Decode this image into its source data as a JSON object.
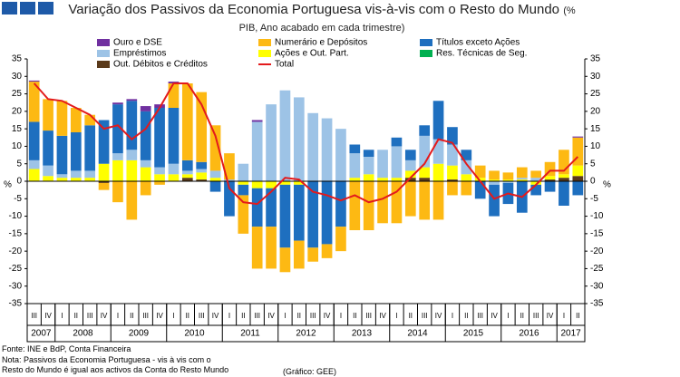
{
  "chart_data": {
    "type": "stacked_bar_line",
    "title": "Variação dos Passivos da Economia Portuguesa vis-à-vis com o Resto do Mundo",
    "subtitle": "(% PIB, Ano acabado em cada trimestre)",
    "y_unit": "%",
    "categories": [
      "III",
      "IV",
      "I",
      "II",
      "III",
      "IV",
      "I",
      "II",
      "III",
      "IV",
      "I",
      "II",
      "III",
      "IV",
      "I",
      "II",
      "III",
      "IV",
      "I",
      "II",
      "III",
      "IV",
      "I",
      "II",
      "III",
      "IV",
      "I",
      "II",
      "III",
      "IV",
      "I",
      "II",
      "III",
      "IV",
      "I",
      "II",
      "III",
      "IV",
      "I",
      "II"
    ],
    "years": [
      "2007",
      "2008",
      "2009",
      "2010",
      "2011",
      "2012",
      "2013",
      "2014",
      "2015",
      "2016",
      "2017"
    ],
    "ylim": [
      -35,
      35
    ],
    "yticks": [
      -35,
      -30,
      -25,
      -20,
      -15,
      -10,
      -5,
      0,
      5,
      10,
      15,
      20,
      25,
      30,
      35
    ],
    "series": [
      {
        "name": "Ouro e DSE",
        "color": "#7030a0",
        "values": [
          0.3,
          0,
          0,
          0,
          0,
          0,
          0.5,
          0.5,
          1.5,
          1,
          0.5,
          0,
          0,
          0,
          0,
          0,
          0.5,
          0,
          0,
          0,
          0,
          0,
          0,
          0,
          0,
          0,
          0,
          0,
          0,
          0,
          0,
          0,
          0,
          0,
          0,
          0,
          0,
          0,
          0,
          0.3
        ]
      },
      {
        "name": "Numerário e Depósitos",
        "color": "#fdb913",
        "values": [
          11.5,
          9,
          10,
          7,
          3,
          -2,
          -6,
          -11,
          -4,
          -1,
          7,
          22,
          20,
          13,
          7.5,
          -11,
          -12,
          -12,
          -7,
          -8,
          -4,
          -4,
          -7,
          -14,
          -14,
          -12,
          -12,
          -10,
          -11,
          -11,
          -4,
          -4,
          3.5,
          2.5,
          2,
          3,
          2,
          4,
          7,
          8
        ]
      },
      {
        "name": "Títulos exceto Ações",
        "color": "#1e6fbf",
        "values": [
          11,
          10,
          11,
          11,
          13,
          12.5,
          14,
          14,
          14,
          17,
          16,
          3,
          2,
          -3,
          -10,
          -3,
          -11,
          -11,
          -18,
          -16,
          -19,
          -18,
          -13,
          2.5,
          2,
          0,
          2.5,
          3,
          3,
          11,
          5,
          3,
          -5,
          -9,
          -6,
          -9,
          -3,
          -3,
          -7,
          -4
        ]
      },
      {
        "name": "Empréstimos",
        "color": "#9dc3e6",
        "values": [
          2.5,
          3,
          1,
          2,
          2,
          0,
          2,
          3,
          2,
          2,
          3,
          1,
          1,
          2,
          0.5,
          5,
          17,
          22,
          26,
          24,
          19.5,
          18,
          15,
          7,
          5,
          8,
          9,
          3,
          9,
          7,
          6,
          4,
          0,
          -1,
          -0.5,
          0.5,
          1,
          0,
          0,
          0
        ]
      },
      {
        "name": "Ações e Out. Part.",
        "color": "#ffff00",
        "values": [
          3.5,
          1.5,
          1,
          1,
          1,
          5,
          6,
          6,
          4,
          2,
          2,
          1,
          2,
          1,
          0,
          -1,
          -2,
          -2,
          -1,
          -1,
          0,
          0,
          0,
          1,
          2,
          1,
          1,
          2,
          3,
          5,
          4,
          2,
          1,
          0.5,
          0.5,
          0.5,
          -1,
          1,
          1,
          3
        ]
      },
      {
        "name": "Res. Técnicas de Seg.",
        "color": "#00b050",
        "values": [
          0,
          0,
          0,
          0,
          0,
          0,
          0,
          0,
          0,
          0,
          0,
          0,
          0,
          0,
          0,
          0,
          0,
          0,
          0,
          0,
          0,
          0,
          0,
          0,
          0,
          0,
          0,
          0,
          0,
          0,
          0,
          0,
          0,
          0,
          0,
          0,
          0,
          0,
          0,
          0
        ]
      },
      {
        "name": "Out. Débitos e Créditos",
        "color": "#5a3a1a",
        "values": [
          0,
          0,
          0,
          0,
          0,
          -0.5,
          0,
          0,
          0,
          0,
          0,
          1,
          0.5,
          0,
          0,
          0,
          0,
          0,
          0,
          0,
          0,
          0,
          0,
          0,
          0,
          0,
          0,
          1,
          1,
          0,
          0.5,
          0,
          0,
          0,
          0,
          0,
          0,
          0.5,
          1,
          1.5
        ]
      },
      {
        "name": "Total",
        "color": "#e31a1c",
        "type": "line",
        "values": [
          28,
          23.5,
          23,
          21,
          19,
          15,
          16,
          12,
          15,
          21,
          28,
          28,
          22,
          13,
          -2,
          -6,
          -6.5,
          -3,
          1,
          0.5,
          -3,
          -4,
          -5.5,
          -4,
          -6,
          -5,
          -3,
          1,
          5,
          12,
          11,
          5,
          0,
          -5,
          -3.5,
          -4.5,
          -1,
          3,
          3,
          7
        ]
      }
    ],
    "notes": [
      "Fonte: INE e BdP, Conta Financeira",
      "Nota: Passivos da Economia Portuguesa - vis à vis com o",
      "Resto do Mundo é igual aos activos da Conta do Resto Mundo"
    ],
    "credit": "(Gráfico: GEE)"
  }
}
